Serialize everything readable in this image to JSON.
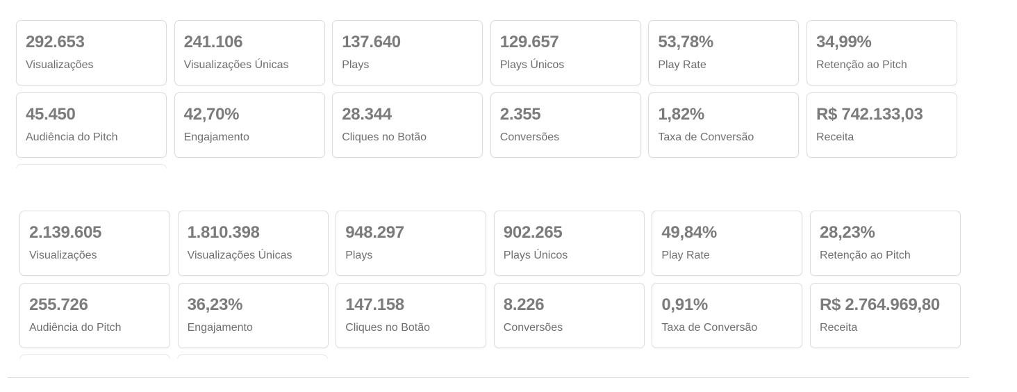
{
  "panels": [
    {
      "cards": [
        {
          "value": "292.653",
          "label": "Visualizações"
        },
        {
          "value": "241.106",
          "label": "Visualizações Únicas"
        },
        {
          "value": "137.640",
          "label": "Plays"
        },
        {
          "value": "129.657",
          "label": "Plays Únicos"
        },
        {
          "value": "53,78%",
          "label": "Play Rate"
        },
        {
          "value": "34,99%",
          "label": "Retenção ao Pitch"
        },
        {
          "value": "45.450",
          "label": "Audiência do Pitch"
        },
        {
          "value": "42,70%",
          "label": "Engajamento"
        },
        {
          "value": "28.344",
          "label": "Cliques no Botão"
        },
        {
          "value": "2.355",
          "label": "Conversões"
        },
        {
          "value": "1,82%",
          "label": "Taxa de Conversão"
        },
        {
          "value": "R$ 742.133,03",
          "label": "Receita"
        }
      ]
    },
    {
      "cards": [
        {
          "value": "2.139.605",
          "label": "Visualizações"
        },
        {
          "value": "1.810.398",
          "label": "Visualizações Únicas"
        },
        {
          "value": "948.297",
          "label": "Plays"
        },
        {
          "value": "902.265",
          "label": "Plays Únicos"
        },
        {
          "value": "49,84%",
          "label": "Play Rate"
        },
        {
          "value": "28,23%",
          "label": "Retenção ao Pitch"
        },
        {
          "value": "255.726",
          "label": "Audiência do Pitch"
        },
        {
          "value": "36,23%",
          "label": "Engajamento"
        },
        {
          "value": "147.158",
          "label": "Cliques no Botão"
        },
        {
          "value": "8.226",
          "label": "Conversões"
        },
        {
          "value": "0,91%",
          "label": "Taxa de Conversão"
        },
        {
          "value": "R$ 2.764.969,80",
          "label": "Receita"
        }
      ]
    }
  ],
  "colors": {
    "value_text": "#7b7b7b",
    "label_text": "#6f6f6f",
    "card_border": "#dcdcdc",
    "background": "#ffffff"
  }
}
